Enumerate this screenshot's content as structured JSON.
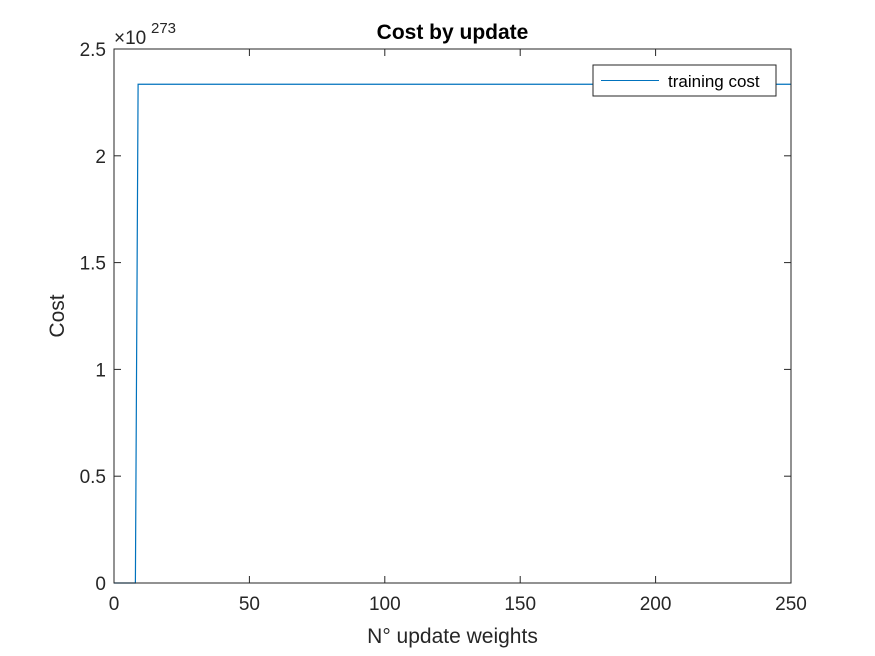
{
  "chart_data": {
    "type": "line",
    "title": "Cost by update",
    "xlabel": "N° update weights",
    "ylabel": "Cost",
    "y_exponent_base": "×10",
    "y_exponent_power": "273",
    "xlim": [
      0,
      250
    ],
    "ylim": [
      0,
      2.5
    ],
    "x_ticks": [
      0,
      50,
      100,
      150,
      200,
      250
    ],
    "y_ticks": [
      0,
      0.5,
      1,
      1.5,
      2,
      2.5
    ],
    "x_tick_labels": [
      "0",
      "50",
      "100",
      "150",
      "200",
      "250"
    ],
    "y_tick_labels": [
      "0",
      "0.5",
      "1",
      "1.5",
      "2",
      "2.5"
    ],
    "grid": false,
    "legend_position": "top-right",
    "series": [
      {
        "name": "training cost",
        "color": "#0072BD",
        "x": [
          0,
          7.9,
          8.9,
          250
        ],
        "y": [
          0,
          0,
          2.335,
          2.335
        ]
      }
    ]
  }
}
